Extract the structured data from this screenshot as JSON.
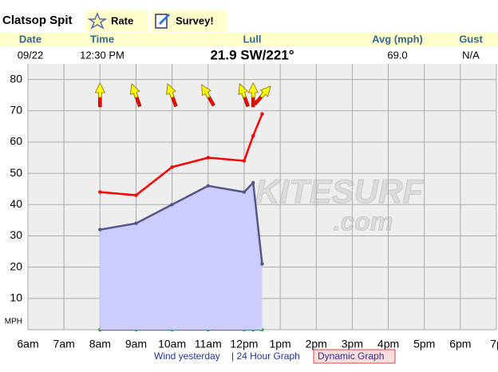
{
  "header": {
    "station": "Clatsop Spit",
    "rate": "Rate",
    "survey": "Survey!"
  },
  "current": {
    "columns": [
      "Date",
      "Time",
      "Lull",
      "Avg (mph)",
      "Gust"
    ],
    "values": [
      "09/22",
      "12:30 PM",
      "21.9 SW/221°",
      "69.0",
      "N/A"
    ]
  },
  "chart_data": {
    "type": "line",
    "watermark": [
      "KITESURF",
      ".com"
    ],
    "x": [
      8,
      9,
      10,
      11,
      12,
      12.25,
      12.5
    ],
    "series": [
      {
        "color": "#ff0000",
        "values": [
          44,
          43,
          52,
          55,
          54,
          62,
          69
        ]
      },
      {
        "color": "#555588",
        "fill": "#ccccff",
        "values": [
          32,
          34,
          40,
          46,
          44,
          47,
          21
        ]
      },
      {
        "color": "#449944",
        "values": [
          0,
          0,
          0,
          0,
          0,
          0,
          0
        ]
      }
    ],
    "directions": {
      "color": "#ffff00",
      "tail_color": "#ff0000",
      "values": [
        180,
        160,
        160,
        150,
        160,
        180,
        221
      ]
    },
    "xlim": [
      6,
      19
    ],
    "xticks": [
      {
        "value": 6,
        "label": "6am"
      },
      {
        "value": 7,
        "label": "7am"
      },
      {
        "value": 8,
        "label": "8am"
      },
      {
        "value": 9,
        "label": "9am"
      },
      {
        "value": 10,
        "label": "10am"
      },
      {
        "value": 11,
        "label": "11am"
      },
      {
        "value": 12,
        "label": "12pm"
      },
      {
        "value": 13,
        "label": "1pm"
      },
      {
        "value": 14,
        "label": "2pm"
      },
      {
        "value": 15,
        "label": "3pm"
      },
      {
        "value": 16,
        "label": "4pm"
      },
      {
        "value": 17,
        "label": "5pm"
      },
      {
        "value": 18,
        "label": "6pm"
      },
      {
        "value": 19,
        "label": "7p"
      }
    ],
    "ylim": [
      0,
      85
    ],
    "yticks": [
      {
        "value": 0,
        "label": "MPH"
      },
      10,
      20,
      30,
      40,
      50,
      60,
      70,
      80
    ],
    "grid": true
  },
  "links": [
    "Wind yesterday",
    "| 24 Hour Graph",
    "Dynamic Graph"
  ]
}
